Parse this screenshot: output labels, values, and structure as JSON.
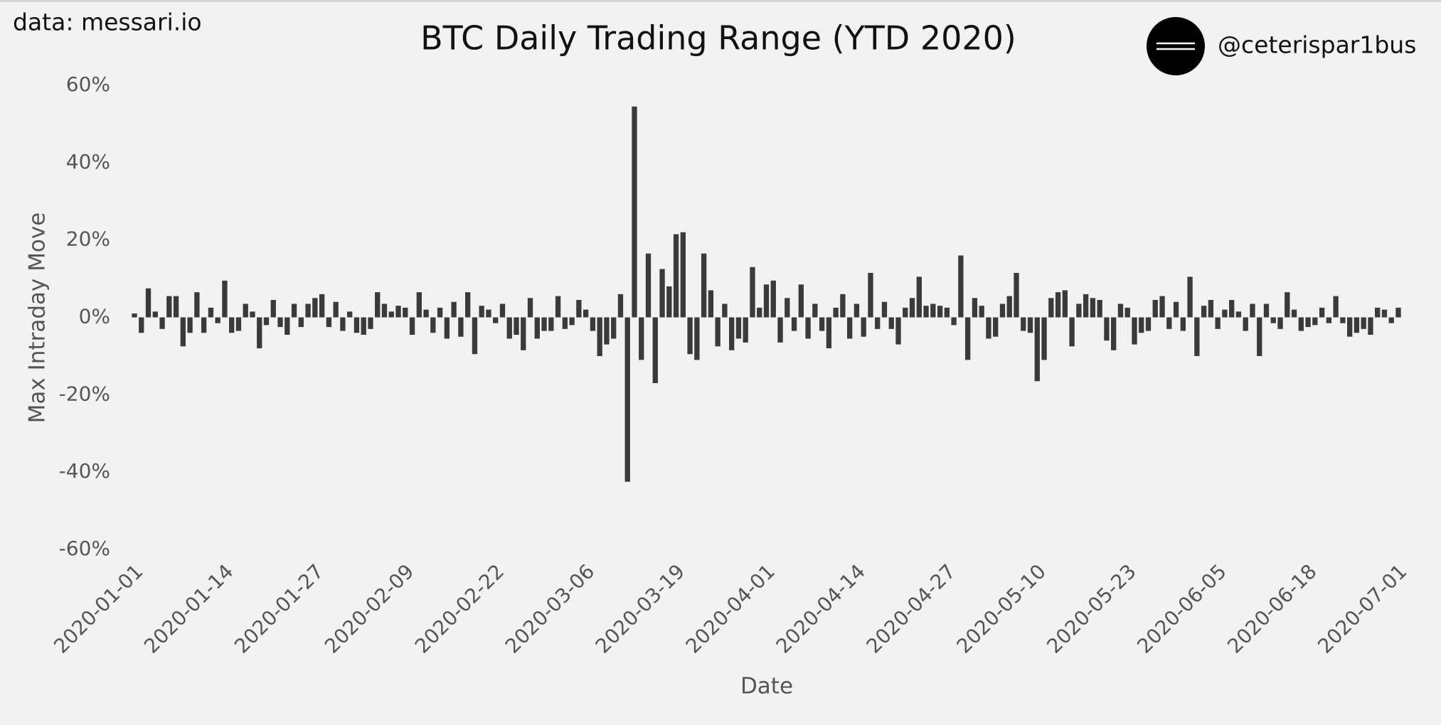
{
  "chart_data": {
    "type": "bar",
    "title": "BTC Daily Trading Range (YTD 2020)",
    "source": "data: messari.io",
    "handle": "@ceterispar1bus",
    "xlabel": "Date",
    "ylabel": "Max Intraday Move",
    "color": "#3a3a3a",
    "grid": false,
    "x": [
      "2020-01-01",
      "2020-01-02",
      "2020-01-03",
      "2020-01-04",
      "2020-01-05",
      "2020-01-06",
      "2020-01-07",
      "2020-01-08",
      "2020-01-09",
      "2020-01-10",
      "2020-01-11",
      "2020-01-12",
      "2020-01-13",
      "2020-01-14",
      "2020-01-15",
      "2020-01-16",
      "2020-01-17",
      "2020-01-18",
      "2020-01-19",
      "2020-01-20",
      "2020-01-21",
      "2020-01-22",
      "2020-01-23",
      "2020-01-24",
      "2020-01-25",
      "2020-01-26",
      "2020-01-27",
      "2020-01-28",
      "2020-01-29",
      "2020-01-30",
      "2020-01-31",
      "2020-02-01",
      "2020-02-02",
      "2020-02-03",
      "2020-02-04",
      "2020-02-05",
      "2020-02-06",
      "2020-02-07",
      "2020-02-08",
      "2020-02-09",
      "2020-02-10",
      "2020-02-11",
      "2020-02-12",
      "2020-02-13",
      "2020-02-14",
      "2020-02-15",
      "2020-02-16",
      "2020-02-17",
      "2020-02-18",
      "2020-02-19",
      "2020-02-20",
      "2020-02-21",
      "2020-02-22",
      "2020-02-23",
      "2020-02-24",
      "2020-02-25",
      "2020-02-26",
      "2020-02-27",
      "2020-02-28",
      "2020-02-29",
      "2020-03-01",
      "2020-03-02",
      "2020-03-03",
      "2020-03-04",
      "2020-03-05",
      "2020-03-06",
      "2020-03-07",
      "2020-03-08",
      "2020-03-09",
      "2020-03-10",
      "2020-03-11",
      "2020-03-12",
      "2020-03-13",
      "2020-03-14",
      "2020-03-15",
      "2020-03-16",
      "2020-03-17",
      "2020-03-18",
      "2020-03-19",
      "2020-03-20",
      "2020-03-21",
      "2020-03-22",
      "2020-03-23",
      "2020-03-24",
      "2020-03-25",
      "2020-03-26",
      "2020-03-27",
      "2020-03-28",
      "2020-03-29",
      "2020-03-30",
      "2020-03-31",
      "2020-04-01",
      "2020-04-02",
      "2020-04-03",
      "2020-04-04",
      "2020-04-05",
      "2020-04-06",
      "2020-04-07",
      "2020-04-08",
      "2020-04-09",
      "2020-04-10",
      "2020-04-11",
      "2020-04-12",
      "2020-04-13",
      "2020-04-14",
      "2020-04-15",
      "2020-04-16",
      "2020-04-17",
      "2020-04-18",
      "2020-04-19",
      "2020-04-20",
      "2020-04-21",
      "2020-04-22",
      "2020-04-23",
      "2020-04-24",
      "2020-04-25",
      "2020-04-26",
      "2020-04-27",
      "2020-04-28",
      "2020-04-29",
      "2020-04-30",
      "2020-05-01",
      "2020-05-02",
      "2020-05-03",
      "2020-05-04",
      "2020-05-05",
      "2020-05-06",
      "2020-05-07",
      "2020-05-08",
      "2020-05-09",
      "2020-05-10",
      "2020-05-11",
      "2020-05-12",
      "2020-05-13",
      "2020-05-14",
      "2020-05-15",
      "2020-05-16",
      "2020-05-17",
      "2020-05-18",
      "2020-05-19",
      "2020-05-20",
      "2020-05-21",
      "2020-05-22",
      "2020-05-23",
      "2020-05-24",
      "2020-05-25",
      "2020-05-26",
      "2020-05-27",
      "2020-05-28",
      "2020-05-29",
      "2020-05-30",
      "2020-05-31",
      "2020-06-01",
      "2020-06-02",
      "2020-06-03",
      "2020-06-04",
      "2020-06-05",
      "2020-06-06",
      "2020-06-07",
      "2020-06-08",
      "2020-06-09",
      "2020-06-10",
      "2020-06-11",
      "2020-06-12",
      "2020-06-13",
      "2020-06-14",
      "2020-06-15",
      "2020-06-16",
      "2020-06-17",
      "2020-06-18",
      "2020-06-19",
      "2020-06-20",
      "2020-06-21",
      "2020-06-22",
      "2020-06-23",
      "2020-06-24",
      "2020-06-25",
      "2020-06-26",
      "2020-06-27",
      "2020-06-28",
      "2020-06-29",
      "2020-06-30",
      "2020-07-01"
    ],
    "values": [
      1,
      -4,
      7.5,
      1.5,
      -3,
      5.5,
      5.5,
      -7.5,
      -4,
      6.5,
      -4,
      2.5,
      -1.5,
      9.5,
      -4,
      -3.5,
      3.5,
      1.5,
      -8,
      -2,
      4.5,
      -2.5,
      -4.5,
      3.5,
      -2.5,
      3.5,
      5,
      6,
      -2.5,
      4,
      -3.5,
      1.5,
      -4,
      -4.5,
      -3,
      6.5,
      3.5,
      1.5,
      3,
      2.5,
      -4.5,
      6.5,
      2,
      -4,
      2.5,
      -5.5,
      4,
      -5,
      6.5,
      -9.5,
      3,
      2,
      -1.5,
      3.5,
      -5.5,
      -4.5,
      -8.5,
      5,
      -5.5,
      -3.5,
      -3.5,
      5.5,
      -3,
      -2,
      4.5,
      2,
      -3.5,
      -10,
      -7,
      -5.5,
      6,
      -42.5,
      54.5,
      -11,
      16.5,
      -17,
      12.5,
      8,
      21.5,
      22,
      -9.5,
      -11,
      16.5,
      7,
      -7.5,
      3.5,
      -8.5,
      -5.5,
      -6.5,
      13,
      2.5,
      8.5,
      9.5,
      -6.5,
      5,
      -3.5,
      8.5,
      -5.5,
      3.5,
      -3.5,
      -8,
      2.5,
      6,
      -5.5,
      3.5,
      -5,
      11.5,
      -3,
      4,
      -3,
      -7,
      2.5,
      5,
      10.5,
      3,
      3.5,
      3,
      2.5,
      -2,
      16,
      -11,
      5,
      3,
      -5.5,
      -5,
      3.5,
      5.5,
      11.5,
      -3.5,
      -4,
      -16.5,
      -11,
      5,
      6.5,
      7,
      -7.5,
      3.5,
      6,
      5,
      4.5,
      -6,
      -8.5,
      3.5,
      2.5,
      -7,
      -4,
      -3.5,
      4.5,
      5.5,
      -3,
      4,
      -3.5,
      10.5,
      -10,
      3,
      4.5,
      -3,
      2,
      4.5,
      1.5,
      -3.5,
      3.5,
      -10,
      3.5,
      -1.5,
      -3,
      6.5,
      2,
      -3.5,
      -2.5,
      -2,
      2.5,
      -1.5,
      5.5,
      -1.5,
      -5,
      -4,
      -3,
      -4.5,
      2.5,
      2,
      -1.5,
      2.5
    ],
    "xticks": [
      "2020-01-01",
      "2020-01-14",
      "2020-01-27",
      "2020-02-09",
      "2020-02-22",
      "2020-03-06",
      "2020-03-19",
      "2020-04-01",
      "2020-04-14",
      "2020-04-27",
      "2020-05-10",
      "2020-05-23",
      "2020-06-05",
      "2020-06-18",
      "2020-07-01"
    ],
    "ylim": [
      -60,
      60
    ],
    "yticks": [
      {
        "value": 60,
        "label": "60%"
      },
      {
        "value": 40,
        "label": "40%"
      },
      {
        "value": 20,
        "label": "20%"
      },
      {
        "value": 0,
        "label": "0%"
      },
      {
        "value": -20,
        "label": "-20%"
      },
      {
        "value": -40,
        "label": "-40%"
      },
      {
        "value": -60,
        "label": "-60%"
      }
    ]
  }
}
